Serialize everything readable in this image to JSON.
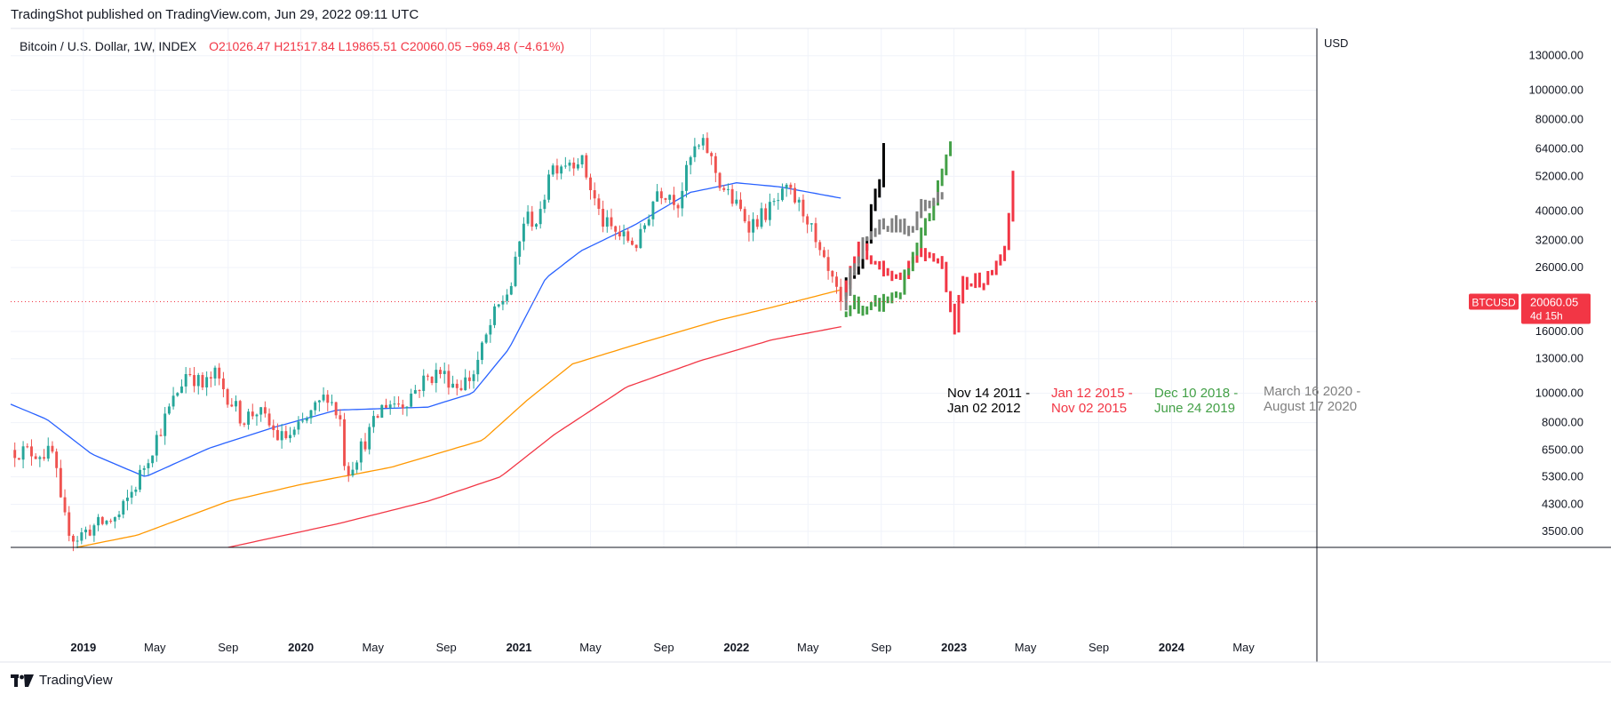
{
  "header": {
    "published": "TradingShot published on TradingView.com, Jun 29, 2022 09:11 UTC"
  },
  "legend": {
    "symbol": "Bitcoin / U.S. Dollar, 1W, INDEX",
    "open": "O21026.47",
    "high": "H21517.84",
    "low": "L19865.51",
    "close": "C20060.05",
    "change": "−969.48 (−4.61%)"
  },
  "footer": {
    "brand": "TradingView"
  },
  "colors": {
    "up": "#26a69a",
    "down": "#ef5350",
    "ma_blue": "#2962ff",
    "ma_orange": "#ff9800",
    "ma_red": "#f23645",
    "price_label": "#f23645",
    "fractal_black": "#000000",
    "fractal_red": "#f23645",
    "fractal_green": "#43a047",
    "fractal_grey": "#808080"
  },
  "chart_data": {
    "type": "candlestick",
    "symbol": "BTCUSD",
    "timeframe": "1W",
    "scale": "log",
    "currency_label": "USD",
    "y_ticks": [
      3500,
      4300,
      5300,
      6500,
      8000,
      10000,
      13000,
      16000,
      20060.05,
      26000,
      32000,
      40000,
      52000,
      64000,
      80000,
      100000,
      130000
    ],
    "y_tick_labels": [
      "3500.00",
      "4300.00",
      "5300.00",
      "6500.00",
      "8000.00",
      "10000.00",
      "13000.00",
      "16000.00",
      "",
      "26000.00",
      "32000.00",
      "40000.00",
      "52000.00",
      "64000.00",
      "80000.00",
      "100000.00",
      "130000.00"
    ],
    "ylim": [
      3100,
      160000
    ],
    "x_range": [
      "2018-09-01",
      "2024-09-01"
    ],
    "x_ticks": [
      {
        "label": "2019",
        "date": "2019-01-01",
        "bold": true
      },
      {
        "label": "May",
        "date": "2019-05-01"
      },
      {
        "label": "Sep",
        "date": "2019-09-01"
      },
      {
        "label": "2020",
        "date": "2020-01-01",
        "bold": true
      },
      {
        "label": "May",
        "date": "2020-05-01"
      },
      {
        "label": "Sep",
        "date": "2020-09-01"
      },
      {
        "label": "2021",
        "date": "2021-01-01",
        "bold": true
      },
      {
        "label": "May",
        "date": "2021-05-01"
      },
      {
        "label": "Sep",
        "date": "2021-09-01"
      },
      {
        "label": "2022",
        "date": "2022-01-01",
        "bold": true
      },
      {
        "label": "May",
        "date": "2022-05-01"
      },
      {
        "label": "Sep",
        "date": "2022-09-01"
      },
      {
        "label": "2023",
        "date": "2023-01-01",
        "bold": true
      },
      {
        "label": "May",
        "date": "2023-05-01"
      },
      {
        "label": "Sep",
        "date": "2023-09-01"
      },
      {
        "label": "2024",
        "date": "2024-01-01",
        "bold": true
      },
      {
        "label": "May",
        "date": "2024-05-01"
      }
    ],
    "last_price": {
      "label": "BTCUSD",
      "value": "20060.05",
      "countdown": "4d 15h"
    },
    "price_keyframes": [
      [
        "2018-09-01",
        6500
      ],
      [
        "2018-11-12",
        6300
      ],
      [
        "2018-11-26",
        4000
      ],
      [
        "2018-12-17",
        3300
      ],
      [
        "2019-01-14",
        3600
      ],
      [
        "2019-03-01",
        3900
      ],
      [
        "2019-04-01",
        5100
      ],
      [
        "2019-05-15",
        8000
      ],
      [
        "2019-06-25",
        12000
      ],
      [
        "2019-07-20",
        10500
      ],
      [
        "2019-08-10",
        11500
      ],
      [
        "2019-09-25",
        8200
      ],
      [
        "2019-10-20",
        8800
      ],
      [
        "2019-11-25",
        7100
      ],
      [
        "2019-12-20",
        7300
      ],
      [
        "2020-01-20",
        8600
      ],
      [
        "2020-02-15",
        10000
      ],
      [
        "2020-03-09",
        8000
      ],
      [
        "2020-03-16",
        5400
      ],
      [
        "2020-04-20",
        7100
      ],
      [
        "2020-05-20",
        9300
      ],
      [
        "2020-06-20",
        9300
      ],
      [
        "2020-07-25",
        11000
      ],
      [
        "2020-08-20",
        11800
      ],
      [
        "2020-09-20",
        10600
      ],
      [
        "2020-10-15",
        11400
      ],
      [
        "2020-11-20",
        18000
      ],
      [
        "2020-12-20",
        23000
      ],
      [
        "2021-01-10",
        38000
      ],
      [
        "2021-02-05",
        37000
      ],
      [
        "2021-02-20",
        55000
      ],
      [
        "2021-03-15",
        58000
      ],
      [
        "2021-04-14",
        60000
      ],
      [
        "2021-05-20",
        37000
      ],
      [
        "2021-06-20",
        33000
      ],
      [
        "2021-07-20",
        31000
      ],
      [
        "2021-08-20",
        47000
      ],
      [
        "2021-09-10",
        46000
      ],
      [
        "2021-09-25",
        43000
      ],
      [
        "2021-10-20",
        63000
      ],
      [
        "2021-11-10",
        66000
      ],
      [
        "2021-12-05",
        49000
      ],
      [
        "2022-01-24",
        36000
      ],
      [
        "2022-03-01",
        41000
      ],
      [
        "2022-03-28",
        46500
      ],
      [
        "2022-05-01",
        38000
      ],
      [
        "2022-05-15",
        30000
      ],
      [
        "2022-06-13",
        22500
      ],
      [
        "2022-06-27",
        20060
      ]
    ],
    "moving_averages": [
      {
        "name": "MA blue",
        "color": "#2962ff",
        "points": [
          [
            "2018-09-01",
            9200
          ],
          [
            "2018-11-01",
            8200
          ],
          [
            "2019-01-15",
            6300
          ],
          [
            "2019-04-15",
            5300
          ],
          [
            "2019-08-01",
            6600
          ],
          [
            "2019-11-15",
            7700
          ],
          [
            "2020-03-01",
            8800
          ],
          [
            "2020-08-01",
            9000
          ],
          [
            "2020-10-15",
            10000
          ],
          [
            "2020-12-15",
            14000
          ],
          [
            "2021-02-15",
            24000
          ],
          [
            "2021-04-15",
            29500
          ],
          [
            "2021-07-15",
            36000
          ],
          [
            "2021-10-15",
            46000
          ],
          [
            "2022-01-01",
            49500
          ],
          [
            "2022-03-15",
            48000
          ],
          [
            "2022-06-27",
            44000
          ]
        ]
      },
      {
        "name": "MA orange",
        "color": "#ff9800",
        "points": [
          [
            "2018-12-20",
            3100
          ],
          [
            "2019-04-01",
            3400
          ],
          [
            "2019-09-01",
            4400
          ],
          [
            "2020-01-01",
            5000
          ],
          [
            "2020-06-01",
            5700
          ],
          [
            "2020-11-01",
            7000
          ],
          [
            "2021-01-15",
            9500
          ],
          [
            "2021-04-01",
            12500
          ],
          [
            "2021-08-01",
            14800
          ],
          [
            "2021-12-01",
            17400
          ],
          [
            "2022-03-01",
            19200
          ],
          [
            "2022-06-27",
            22000
          ]
        ]
      },
      {
        "name": "MA red",
        "color": "#f23645",
        "points": [
          [
            "2019-09-01",
            3100
          ],
          [
            "2020-03-01",
            3700
          ],
          [
            "2020-08-01",
            4400
          ],
          [
            "2020-12-01",
            5300
          ],
          [
            "2021-03-01",
            7300
          ],
          [
            "2021-07-01",
            10500
          ],
          [
            "2021-11-01",
            12800
          ],
          [
            "2022-03-01",
            15000
          ],
          [
            "2022-06-27",
            16600
          ]
        ]
      }
    ],
    "fractals": [
      {
        "name": "Nov 14 2011 - Jan 02 2012",
        "color": "#000000",
        "points": [
          [
            "2022-06-27",
            21000
          ],
          [
            "2022-07-11",
            24000
          ],
          [
            "2022-07-25",
            26500
          ],
          [
            "2022-08-08",
            33000
          ],
          [
            "2022-08-22",
            45000
          ],
          [
            "2022-09-05",
            62000
          ]
        ]
      },
      {
        "name": "Jan 12 2015 - Nov 02 2015",
        "color": "#f23645",
        "points": [
          [
            "2022-06-27",
            21000
          ],
          [
            "2022-07-11",
            27500
          ],
          [
            "2022-07-25",
            30000
          ],
          [
            "2022-08-15",
            28000
          ],
          [
            "2022-09-05",
            25500
          ],
          [
            "2022-10-01",
            24000
          ],
          [
            "2022-11-01",
            30000
          ],
          [
            "2022-11-25",
            29000
          ],
          [
            "2022-12-10",
            27000
          ],
          [
            "2023-01-02",
            17000
          ],
          [
            "2023-01-15",
            23000
          ],
          [
            "2023-02-15",
            24000
          ],
          [
            "2023-03-15",
            25500
          ],
          [
            "2023-04-01",
            33000
          ],
          [
            "2023-04-10",
            52000
          ]
        ]
      },
      {
        "name": "Dec 10 2018 - June 24 2019",
        "color": "#43a047",
        "points": [
          [
            "2022-06-27",
            18000
          ],
          [
            "2022-07-18",
            20000
          ],
          [
            "2022-08-08",
            18500
          ],
          [
            "2022-09-01",
            20000
          ],
          [
            "2022-10-01",
            21500
          ],
          [
            "2022-11-01",
            30000
          ],
          [
            "2022-12-01",
            45000
          ],
          [
            "2023-01-01",
            75000
          ]
        ]
      },
      {
        "name": "March 16 2020 - August 17 2020",
        "color": "#808080",
        "points": [
          [
            "2022-06-27",
            19000
          ],
          [
            "2022-07-18",
            28000
          ],
          [
            "2022-08-15",
            34000
          ],
          [
            "2022-09-15",
            36000
          ],
          [
            "2022-10-15",
            35000
          ],
          [
            "2022-11-15",
            43000
          ],
          [
            "2022-12-15",
            48000
          ]
        ]
      }
    ],
    "annotations": [
      {
        "line1": "Nov 14 2011 -",
        "line2": "Jan 02 2012",
        "color": "#000000"
      },
      {
        "line1": "Jan 12 2015 -",
        "line2": "Nov 02 2015",
        "color": "#f23645"
      },
      {
        "line1": "Dec 10 2018 -",
        "line2": "June 24 2019",
        "color": "#43a047"
      },
      {
        "line1": "March 16 2020 -",
        "line2": "August 17 2020",
        "color": "#808080"
      }
    ]
  }
}
